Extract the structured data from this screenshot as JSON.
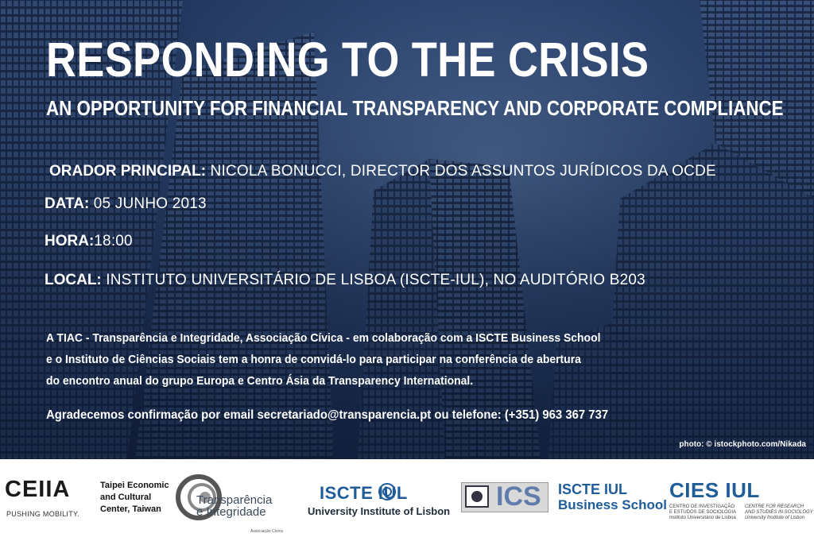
{
  "poster": {
    "title": "RESPONDING TO THE CRISIS",
    "subtitle": "AN OPPORTUNITY FOR FINANCIAL TRANSPARENCY AND CORPORATE COMPLIANCE",
    "speaker_label": "ORADOR PRINCIPAL:",
    "speaker_value": " NICOLA BONUCCI, DIRECTOR DOS ASSUNTOS JURÍDICOS DA OCDE",
    "date_label": "DATA:",
    "date_value": " 05 JUNHO 2013",
    "time_label": "HORA:",
    "time_value": "18:00",
    "place_label": "LOCAL:",
    "place_value": " INSTITUTO UNIVERSITÁRIO DE LISBOA (ISCTE-IUL), NO AUDITÓRIO B203",
    "body_line1": "A TIAC - Transparência e Integridade, Associação Cívica - em colaboração com a ISCTE Business School",
    "body_line2": "e o Instituto de Ciências Sociais tem a honra de convidá-lo para participar na conferência de abertura",
    "body_line3": "do encontro anual do grupo Europa e Centro Ásia da Transparency International.",
    "rsvp": "Agradecemos confirmação por email secretariado@transparencia.pt ou telefone: (+351) 963 367 737",
    "photo_credit": "photo: © istockphoto.com/Nikada"
  },
  "logos": {
    "ceiia_name": "CEIIA",
    "ceiia_tagline": "PUSHING MOBILITY.",
    "taipei_line1": "Taipei Economic",
    "taipei_line2": "and Cultural",
    "taipei_line3": "Center, Taiwan",
    "ti_line1": "Transparência",
    "ti_line2": "e Integridade",
    "ti_small": "Associação Cívica",
    "iscte_name": "ISCTE  IUL",
    "iscte_sub": "University Institute of Lisbon",
    "ics_name": "ICS",
    "iscte_bs_name": "ISCTE  IUL",
    "iscte_bs_sub": "Business School",
    "cies_name": "CIES IUL",
    "cies_pt_line1": "CENTRO DE INVESTIGAÇÃO",
    "cies_pt_line2": "E ESTUDOS DE SOCIOLOGIA",
    "cies_pt_line3": "Instituto Universitário de Lisboa",
    "cies_en_line1": "CENTRE FOR RESEARCH",
    "cies_en_line2": "AND STUDIES IN SOCIOLOGY",
    "cies_en_line3": "University Institute of Lisbon"
  },
  "colors": {
    "sky_dark": "#101d38",
    "sky_light": "#5f7fae",
    "brand_blue": "#1e5c9a"
  }
}
